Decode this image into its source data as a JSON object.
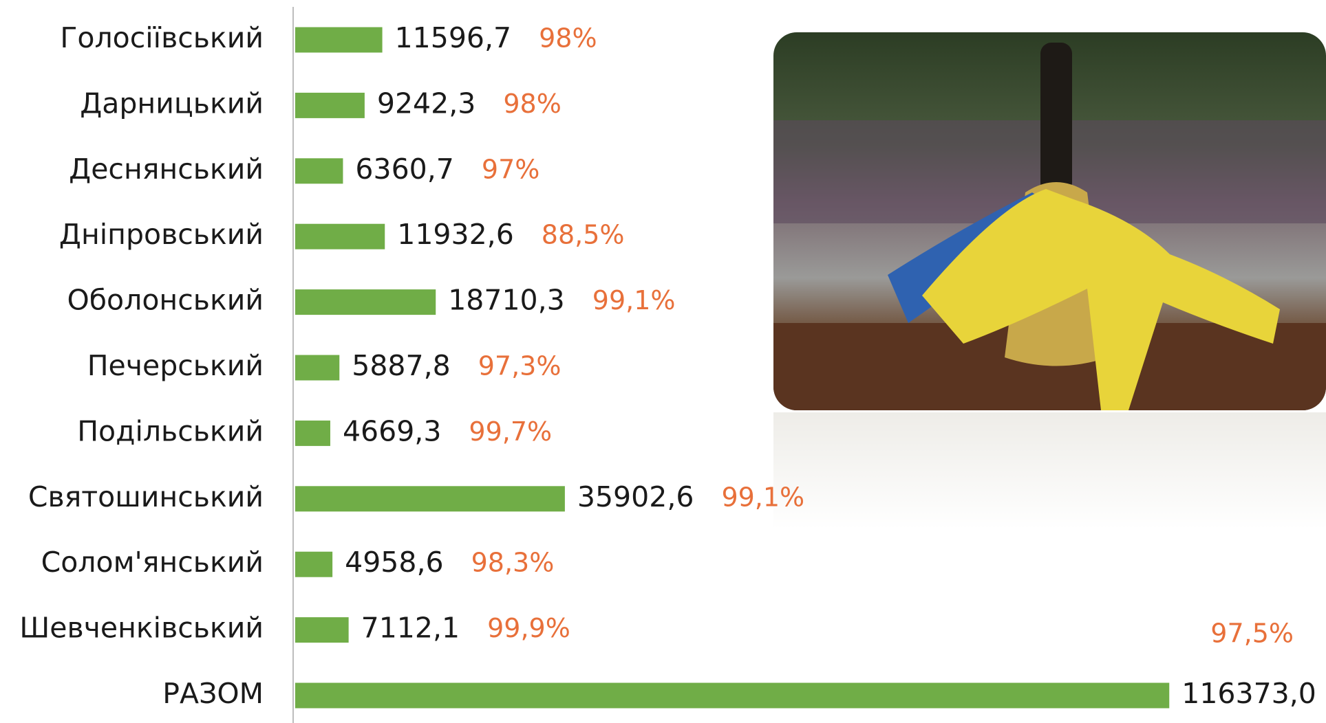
{
  "chart_data": {
    "type": "bar",
    "orientation": "horizontal",
    "categories": [
      "Голосіївський",
      "Дарницький",
      "Деснянський",
      "Дніпровський",
      "Оболонський",
      "Печерський",
      "Подільський",
      "Святошинський",
      "Солом'янський",
      "Шевченківський",
      "РАЗОМ"
    ],
    "values": [
      11596.7,
      9242.3,
      6360.7,
      11932.6,
      18710.3,
      5887.8,
      4669.3,
      35902.6,
      4958.6,
      7112.1,
      116373.0
    ],
    "value_labels": [
      "11596,7",
      "9242,3",
      "6360,7",
      "11932,6",
      "18710,3",
      "5887,8",
      "4669,3",
      "35902,6",
      "4958,6",
      "7112,1",
      "116373,0"
    ],
    "annotations": [
      "98%",
      "98%",
      "97%",
      "88,5%",
      "99,1%",
      "97,3%",
      "99,7%",
      "99,1%",
      "98,3%",
      "99,9%",
      "97,5%"
    ],
    "color": "#70ad47",
    "annotation_color": "#e8703a",
    "xlim": [
      0,
      130000
    ]
  }
}
